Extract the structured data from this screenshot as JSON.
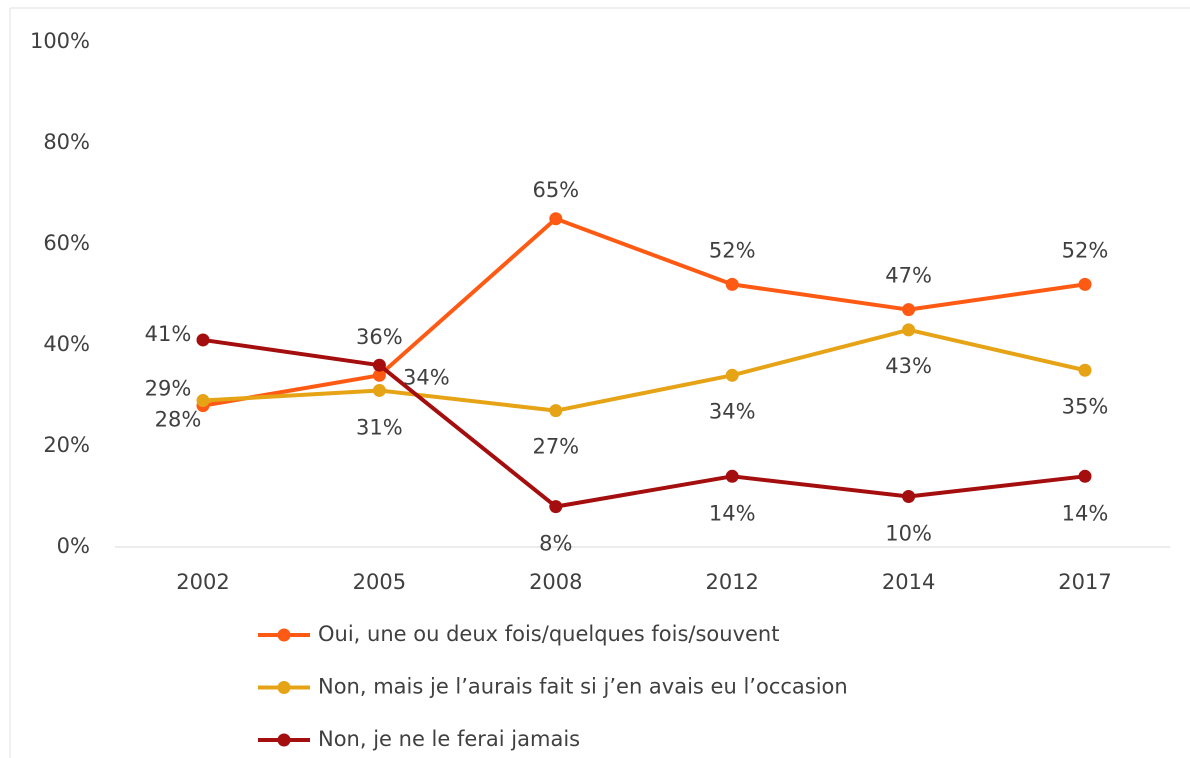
{
  "chart_data": {
    "type": "line",
    "categories": [
      "2002",
      "2005",
      "2008",
      "2012",
      "2014",
      "2017"
    ],
    "series": [
      {
        "name": "Oui, une ou deux fois/quelques fois/souvent",
        "color": "#ff5a14",
        "values": [
          28,
          34,
          65,
          52,
          47,
          52
        ],
        "value_labels": [
          "28%",
          "34%",
          "65%",
          "52%",
          "47%",
          "52%"
        ]
      },
      {
        "name": "Non, mais je l’aurais fait si j’en avais eu l’occasion",
        "color": "#e6a316",
        "values": [
          29,
          31,
          27,
          34,
          43,
          35
        ],
        "value_labels": [
          "29%",
          "31%",
          "27%",
          "34%",
          "43%",
          "35%"
        ]
      },
      {
        "name": "Non, je ne le ferai jamais",
        "color": "#a50e0e",
        "values": [
          41,
          36,
          8,
          14,
          10,
          14
        ],
        "value_labels": [
          "41%",
          "36%",
          "8%",
          "14%",
          "10%",
          "14%"
        ]
      }
    ],
    "ylim": [
      0,
      100
    ],
    "yticks": [
      {
        "value": 0,
        "label": "0%"
      },
      {
        "value": 20,
        "label": "20%"
      },
      {
        "value": 40,
        "label": "40%"
      },
      {
        "value": 60,
        "label": "60%"
      },
      {
        "value": 80,
        "label": "80%"
      },
      {
        "value": 100,
        "label": "100%"
      }
    ],
    "legend": "bottom"
  }
}
